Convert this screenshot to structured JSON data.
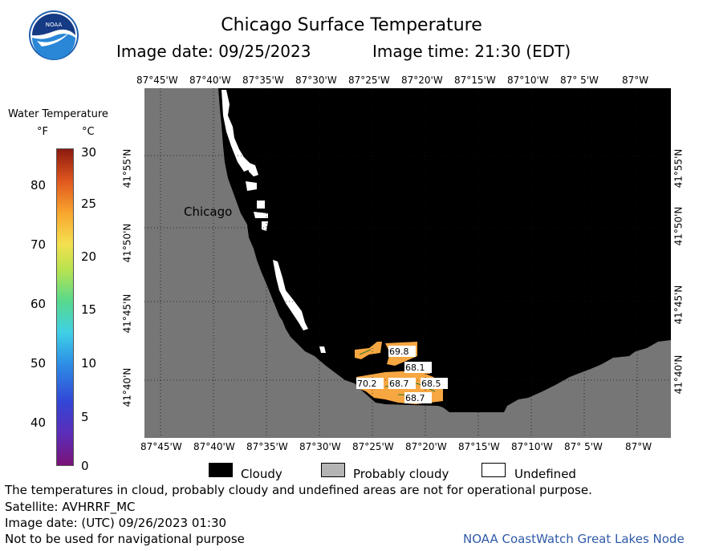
{
  "header": {
    "title": "Chicago Surface Temperature",
    "image_date": "Image date: 09/25/2023",
    "image_time": "Image time: 21:30 (EDT)"
  },
  "colorbar": {
    "title": "Water Temperature",
    "unit_f": "°F",
    "unit_c": "°C",
    "f_ticks": [
      "80",
      "70",
      "60",
      "50",
      "40"
    ],
    "c_ticks": [
      "30",
      "25",
      "20",
      "15",
      "10",
      "5",
      "0"
    ],
    "range_c": [
      0,
      30
    ]
  },
  "map": {
    "lon_labels": [
      "87°45'W",
      "87°40'W",
      "87°35'W",
      "87°30'W",
      "87°25'W",
      "87°20'W",
      "87°15'W",
      "87°10'W",
      "87° 5'W",
      "87°W"
    ],
    "lat_labels": [
      "41°55'N",
      "41°50'N",
      "41°45'N",
      "41°40'N"
    ],
    "city_label": "Chicago",
    "temp_labels": [
      "69.8",
      "68.1",
      "70.2",
      "68.7",
      "68.5",
      "68.7"
    ],
    "colors": {
      "land": "#767676",
      "cloud": "#000000",
      "undefined": "#ffffff",
      "warm": "#f7a742"
    }
  },
  "legend": {
    "cloudy": "Cloudy",
    "probably_cloudy": "Probably cloudy",
    "undefined": "Undefined"
  },
  "footer": {
    "note": "The temperatures in cloud, probably cloudy and undefined areas are not for operational purpose.",
    "satellite": "Satellite: AVHRRF_MC",
    "utc_date": "Image date: (UTC) 09/26/2023  01:30",
    "nav_note": "Not to be used for navigational purpose",
    "credit": "NOAA CoastWatch Great Lakes Node"
  }
}
